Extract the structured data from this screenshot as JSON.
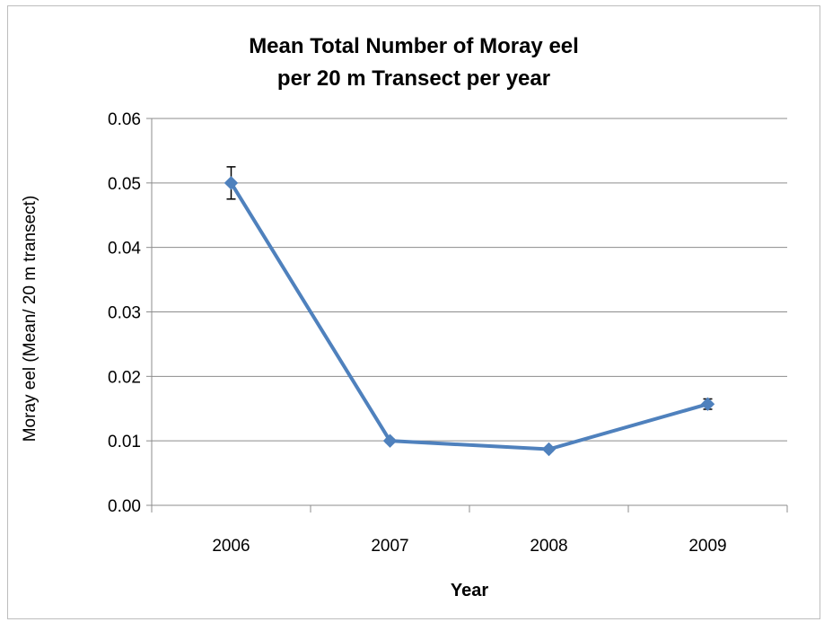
{
  "chart_data": {
    "type": "line",
    "title_lines": [
      "Mean Total Number of Moray eel",
      "per 20 m Transect per year"
    ],
    "xlabel": "Year",
    "ylabel": "Moray eel (Mean/ 20 m transect)",
    "categories": [
      "2006",
      "2007",
      "2008",
      "2009"
    ],
    "y_ticks": [
      "0.00",
      "0.01",
      "0.02",
      "0.03",
      "0.04",
      "0.05",
      "0.06"
    ],
    "ylim": [
      0,
      0.06
    ],
    "grid": true,
    "legend": "none",
    "series": [
      {
        "values": [
          0.05,
          0.01,
          0.0087,
          0.0157
        ],
        "error": [
          0.0025,
          0.0003,
          0.0003,
          0.0008
        ],
        "color": "#4f81bd"
      }
    ]
  }
}
